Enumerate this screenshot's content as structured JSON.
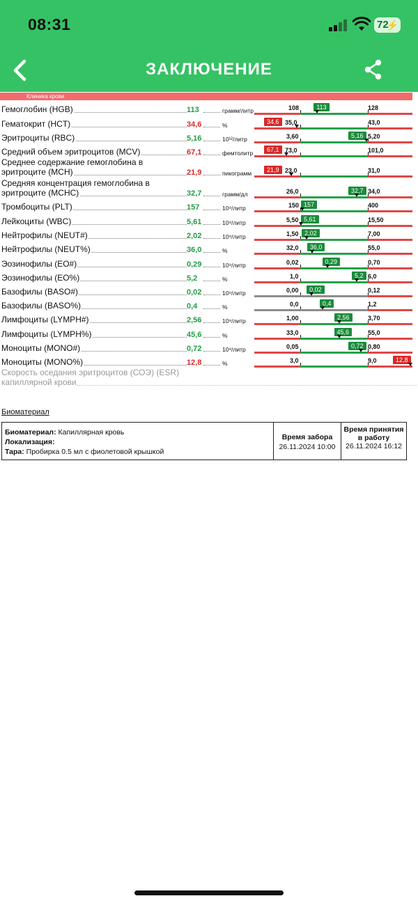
{
  "status_bar": {
    "time": "08:31",
    "battery": "72"
  },
  "header": {
    "title": "ЗАКЛЮЧЕНИЕ",
    "back_icon": "chevron-left-icon",
    "share_icon": "share-icon"
  },
  "section": {
    "label": "Клиника крови"
  },
  "colors": {
    "header": "#35c264",
    "green": "#1a8c3b",
    "red": "#d82828",
    "bar_red": "#e04848",
    "bar_green": "#27a14a",
    "bar_gray": "#8c8c8c"
  },
  "results": [
    {
      "name": "Гемоглобин (HGB)",
      "value": "113",
      "status": "normal",
      "unit": "грамм/литр",
      "low": "108",
      "high": "128",
      "badge": "113"
    },
    {
      "name": "Гематокрит (HCT)",
      "value": "34,6",
      "status": "low",
      "unit": "%",
      "low": "35,0",
      "high": "43,0",
      "badge": "34,6"
    },
    {
      "name": "Эритроциты (RBC)",
      "value": "5,16",
      "status": "normal",
      "unit": "10¹²/литр",
      "low": "3,60",
      "high": "5,20",
      "badge": "5,16"
    },
    {
      "name": "Средний объем эритроцитов (MCV)",
      "value": "67,1",
      "status": "low",
      "unit": "фемтолитр",
      "low": "73,0",
      "high": "101,0",
      "badge": "67,1"
    },
    {
      "name": "Среднее содержание гемоглобина в эритроците (MCH)",
      "value": "21,9",
      "status": "low",
      "unit": "пикограмм",
      "low": "23,0",
      "high": "31,0",
      "badge": "21,9"
    },
    {
      "name": "Средняя концентрация гемоглобина в эритроците (MCHC)",
      "value": "32,7",
      "status": "normal",
      "unit": "грамм/дл",
      "low": "26,0",
      "high": "34,0",
      "badge": "32,7"
    },
    {
      "name": "Тромбоциты (PLT)",
      "value": "157",
      "status": "normal",
      "unit": "10⁹/литр",
      "low": "150",
      "high": "400",
      "badge": "157"
    },
    {
      "name": "Лейкоциты (WBC)",
      "value": "5,61",
      "status": "normal",
      "unit": "10⁹/литр",
      "low": "5,50",
      "high": "15,50",
      "badge": "5,61"
    },
    {
      "name": "Нейтрофилы (NEUT#)",
      "value": "2,02",
      "status": "normal",
      "unit": "10⁹/литр",
      "low": "1,50",
      "high": "7,00",
      "badge": "2,02"
    },
    {
      "name": "Нейтрофилы (NEUT%)",
      "value": "36,0",
      "status": "normal",
      "unit": "%",
      "low": "32,0",
      "high": "55,0",
      "badge": "36,0"
    },
    {
      "name": "Эозинофилы (EO#)",
      "value": "0,29",
      "status": "normal",
      "unit": "10⁹/литр",
      "low": "0,02",
      "high": "0,70",
      "badge": "0,29"
    },
    {
      "name": "Эозинофилы (EO%)",
      "value": "5,2",
      "status": "normal",
      "unit": "%",
      "low": "1,0",
      "high": "6,0",
      "badge": "5,2"
    },
    {
      "name": "Базофилы (BASO#)",
      "value": "0,02",
      "status": "normal",
      "unit": "10⁹/литр",
      "low": "0,00",
      "high": "0,12",
      "badge": "0,02"
    },
    {
      "name": "Базофилы (BASO%)",
      "value": "0,4",
      "status": "normal",
      "unit": "%",
      "low": "0,0",
      "high": "1,2",
      "badge": "0,4"
    },
    {
      "name": "Лимфоциты (LYMPH#)",
      "value": "2,56",
      "status": "normal",
      "unit": "10⁹/литр",
      "low": "1,00",
      "high": "3,70",
      "badge": "2,56"
    },
    {
      "name": "Лимфоциты (LYMPH%)",
      "value": "45,6",
      "status": "normal",
      "unit": "%",
      "low": "33,0",
      "high": "55,0",
      "badge": "45,6"
    },
    {
      "name": "Моноциты (MONO#)",
      "value": "0,72",
      "status": "normal",
      "unit": "10⁹/литр",
      "low": "0,05",
      "high": "0,80",
      "badge": "0,72"
    },
    {
      "name": "Моноциты (MONO%)",
      "value": "12,8",
      "status": "high",
      "unit": "%",
      "low": "3,0",
      "high": "9,0",
      "badge": "12,8"
    }
  ],
  "esr": {
    "name": "Скорость оседания эритроцитов (СОЭ) (ESR) капиллярной крови"
  },
  "biomaterial": {
    "section_title": "Биоматериал",
    "material_label": "Биоматериал:",
    "material_value": "Капиллярная кровь",
    "location_label": "Локализация:",
    "tube_label": "Тара:",
    "tube_value": "Пробирка 0.5 мл с фиолетовой крышкой",
    "collected_label": "Время забора",
    "collected_value": "26.11.2024 10:00",
    "accepted_label": "Время принятия в работу",
    "accepted_value": "26.11.2024 16:12"
  }
}
